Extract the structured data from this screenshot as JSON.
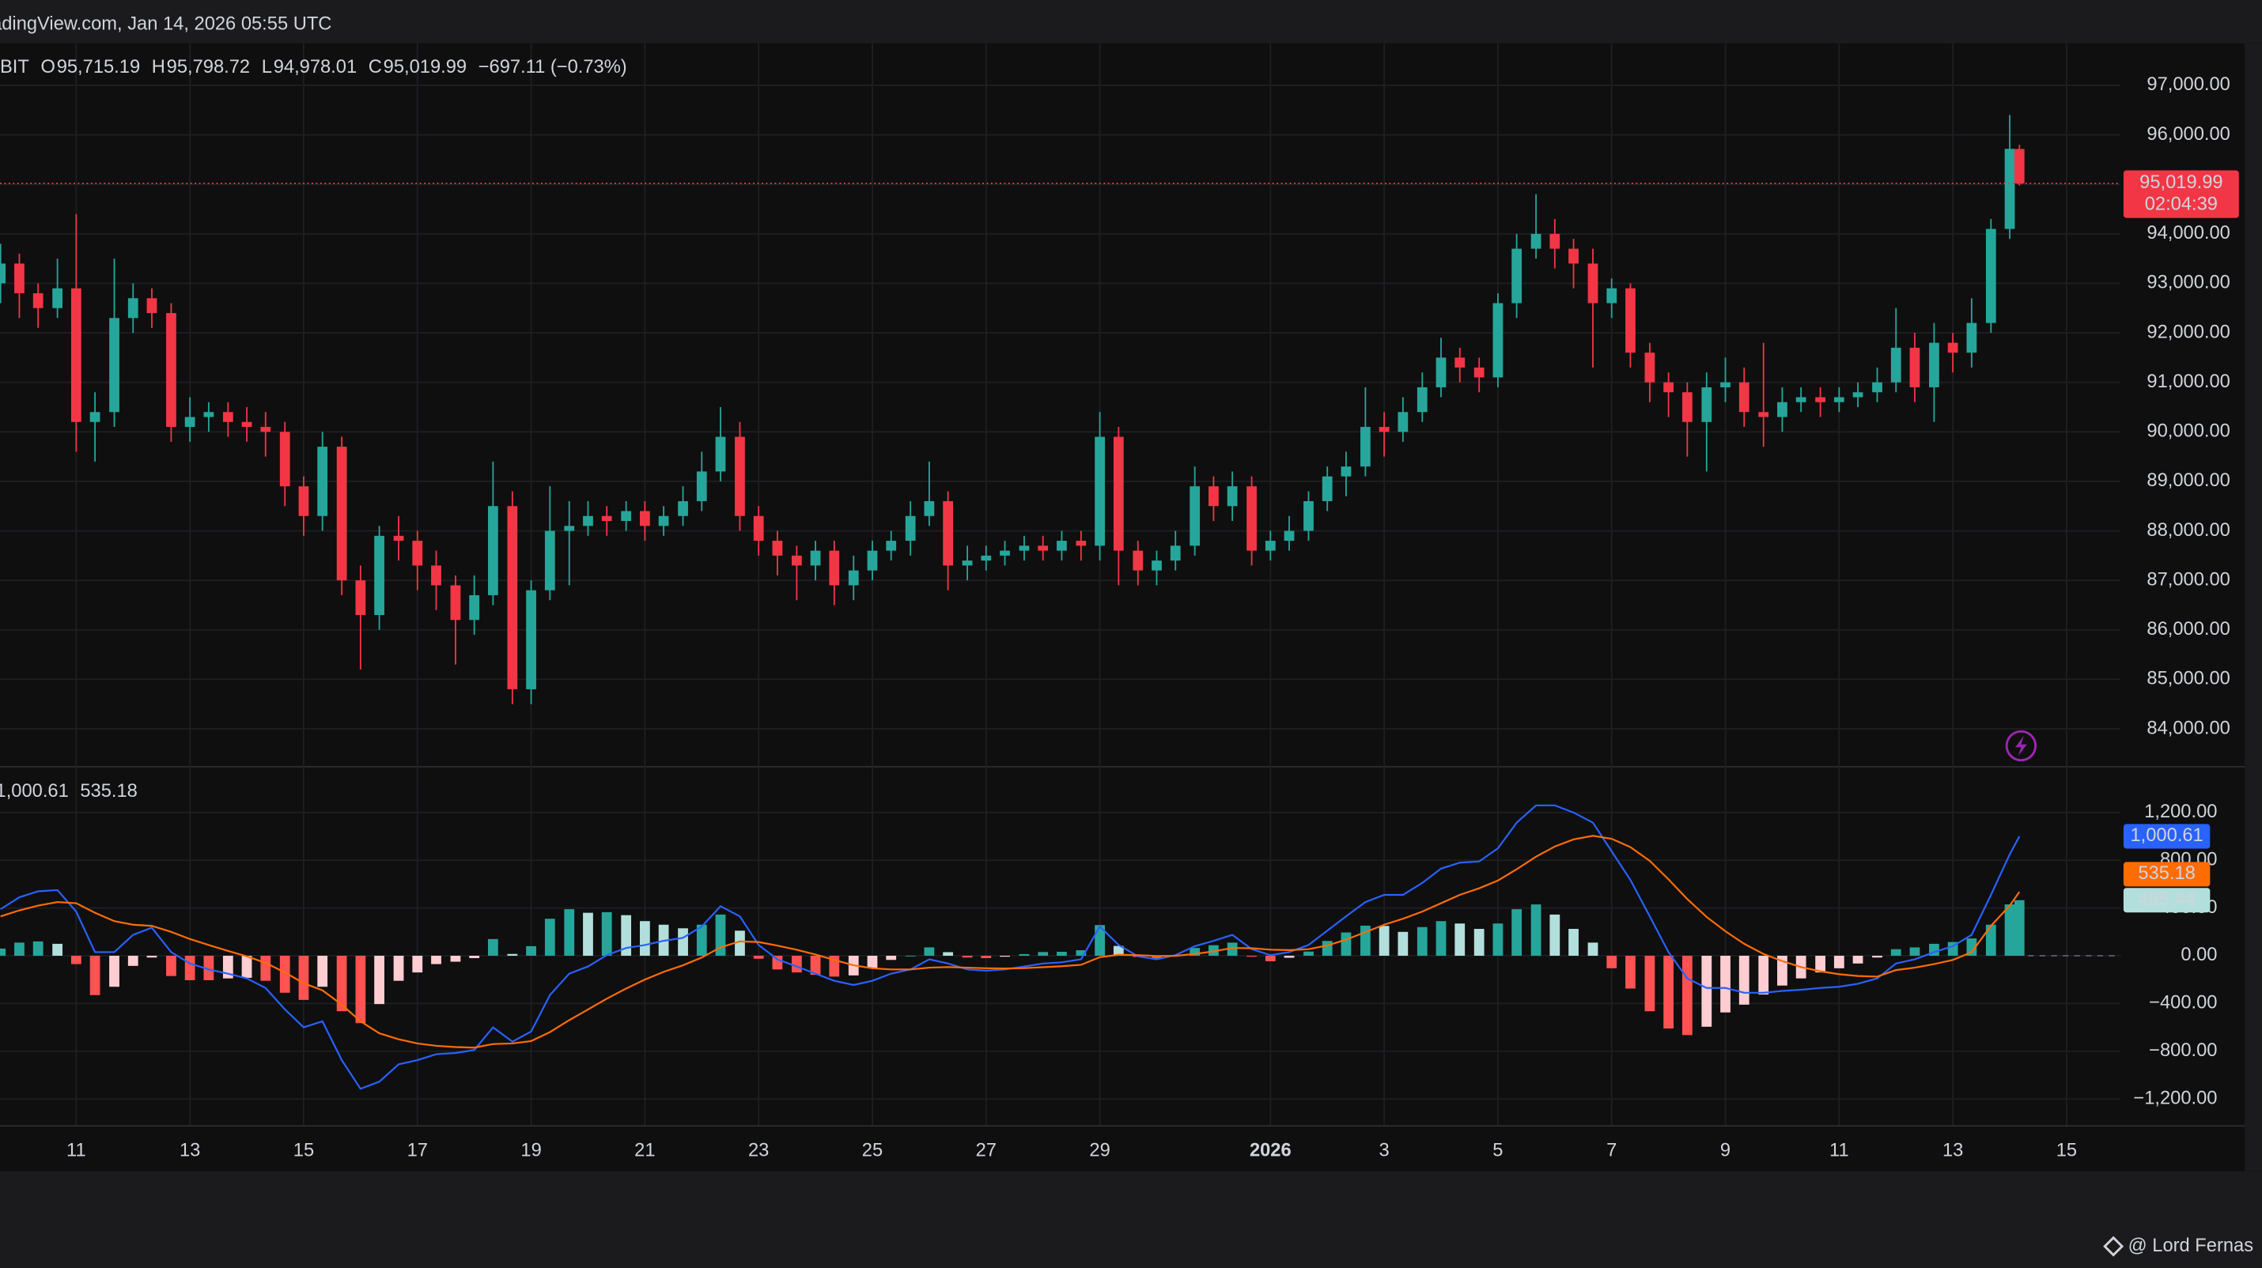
{
  "header": {
    "title": "adingView.com, Jan 14, 2026 05:55 UTC"
  },
  "watermark": "@ Lord Fernas",
  "chart_data": [
    {
      "type": "candlestick",
      "legend": [
        {
          "text": "BIT",
          "color": "#d1d4dc"
        },
        {
          "text": "O",
          "color": "#d1d4dc"
        },
        {
          "text": "95,715.19",
          "color": "#f23645"
        },
        {
          "text": "H",
          "color": "#d1d4dc"
        },
        {
          "text": "95,798.72",
          "color": "#f23645"
        },
        {
          "text": "L",
          "color": "#d1d4dc"
        },
        {
          "text": "94,978.01",
          "color": "#f23645"
        },
        {
          "text": "C",
          "color": "#d1d4dc"
        },
        {
          "text": "95,019.99",
          "color": "#f23645"
        },
        {
          "text": "−697.11 (−0.73%)",
          "color": "#f23645"
        }
      ],
      "last_label": "95,019.99",
      "countdown": "02:04:39",
      "up_color": "#26a69a",
      "down_color": "#f23645",
      "grid": true,
      "xlim": [
        9.66,
        46.95
      ],
      "ylim": [
        83250,
        97850
      ],
      "xticks": [
        11,
        13,
        15,
        17,
        19,
        21,
        23,
        25,
        27,
        29,
        {
          "value": 32,
          "label": "2026"
        },
        {
          "value": 34,
          "label": "3"
        },
        {
          "value": 36,
          "label": "5"
        },
        {
          "value": 38,
          "label": "7"
        },
        {
          "value": 40,
          "label": "9"
        },
        {
          "value": 42,
          "label": "11"
        },
        {
          "value": 44,
          "label": "13"
        },
        {
          "value": 46,
          "label": "15"
        }
      ],
      "yticks": [
        {
          "value": 84000,
          "label": "84,000.00"
        },
        {
          "value": 85000,
          "label": "85,000.00"
        },
        {
          "value": 86000,
          "label": "86,000.00"
        },
        {
          "value": 87000,
          "label": "87,000.00"
        },
        {
          "value": 88000,
          "label": "88,000.00"
        },
        {
          "value": 89000,
          "label": "89,000.00"
        },
        {
          "value": 90000,
          "label": "90,000.00"
        },
        {
          "value": 91000,
          "label": "91,000.00"
        },
        {
          "value": 92000,
          "label": "92,000.00"
        },
        {
          "value": 93000,
          "label": "93,000.00"
        },
        {
          "value": 94000,
          "label": "94,000.00"
        },
        {
          "value": 95000,
          "label": "95,000.00"
        },
        {
          "value": 96000,
          "label": "96,000.00"
        },
        {
          "value": 97000,
          "label": "97,000.00"
        }
      ],
      "x": [
        9.67,
        10,
        10.33,
        10.67,
        11,
        11.33,
        11.67,
        12,
        12.33,
        12.67,
        13,
        13.33,
        13.67,
        14,
        14.33,
        14.67,
        15,
        15.33,
        15.67,
        16,
        16.33,
        16.67,
        17,
        17.33,
        17.67,
        18,
        18.33,
        18.67,
        19,
        19.33,
        19.67,
        20,
        20.33,
        20.67,
        21,
        21.33,
        21.67,
        22,
        22.33,
        22.67,
        23,
        23.33,
        23.67,
        24,
        24.33,
        24.67,
        25,
        25.33,
        25.67,
        26,
        26.33,
        26.67,
        27,
        27.33,
        27.67,
        28,
        28.33,
        28.67,
        29,
        29.33,
        29.67,
        30,
        30.33,
        30.67,
        31,
        31.33,
        31.67,
        32,
        32.33,
        32.67,
        33,
        33.33,
        33.67,
        34,
        34.33,
        34.67,
        35,
        35.33,
        35.67,
        36,
        36.33,
        36.67,
        37,
        37.33,
        37.67,
        38,
        38.33,
        38.67,
        39,
        39.33,
        39.67,
        40,
        40.33,
        40.67,
        41,
        41.33,
        41.67,
        42,
        42.33,
        42.67,
        43,
        43.33,
        43.67,
        44,
        44.33,
        44.67,
        45,
        45.17
      ],
      "open": [
        93000,
        93400,
        92800,
        92500,
        92900,
        90200,
        90400,
        92300,
        92700,
        92400,
        90100,
        90300,
        90400,
        90200,
        90100,
        90000,
        88900,
        88300,
        89700,
        87000,
        86300,
        87900,
        87800,
        87300,
        86900,
        86200,
        86700,
        88500,
        84800,
        86800,
        88000,
        88100,
        88300,
        88200,
        88400,
        88100,
        88300,
        88600,
        89200,
        89900,
        88300,
        87800,
        87500,
        87300,
        87600,
        86900,
        87200,
        87600,
        87800,
        88300,
        88600,
        87300,
        87400,
        87500,
        87600,
        87700,
        87600,
        87800,
        87700,
        89900,
        87600,
        87200,
        87400,
        87700,
        88900,
        88500,
        88900,
        87600,
        87800,
        88000,
        88600,
        89100,
        89300,
        90100,
        90000,
        90400,
        90900,
        91500,
        91300,
        91100,
        92600,
        93700,
        94000,
        93700,
        93400,
        92600,
        92900,
        91600,
        91000,
        90800,
        90200,
        90900,
        91000,
        90400,
        90300,
        90600,
        90700,
        90600,
        90700,
        90800,
        91000,
        91700,
        90900,
        91800,
        91600,
        92200,
        94100,
        95715.19
      ],
      "high": [
        93800,
        93600,
        93000,
        93500,
        94400,
        90800,
        93500,
        93000,
        92900,
        92600,
        90700,
        90600,
        90600,
        90500,
        90400,
        90200,
        89100,
        90000,
        89900,
        87300,
        88100,
        88300,
        88000,
        87600,
        87100,
        87100,
        89400,
        88800,
        87000,
        88900,
        88600,
        88600,
        88500,
        88600,
        88600,
        88500,
        88900,
        89600,
        90500,
        90200,
        88500,
        88000,
        87700,
        87800,
        87800,
        87500,
        87800,
        88000,
        88600,
        89400,
        88800,
        87700,
        87700,
        87800,
        87900,
        87900,
        88000,
        88000,
        90400,
        90100,
        87800,
        87600,
        88000,
        89300,
        89100,
        89200,
        89100,
        88000,
        88300,
        88800,
        89300,
        89600,
        90900,
        90400,
        90700,
        91200,
        91900,
        91700,
        91500,
        92800,
        94000,
        94800,
        94300,
        93900,
        93700,
        93100,
        93000,
        91800,
        91200,
        91000,
        91200,
        91500,
        91300,
        91800,
        90900,
        90900,
        90900,
        90900,
        91000,
        91300,
        92500,
        92000,
        92200,
        92000,
        92700,
        94300,
        96400,
        95798.72
      ],
      "low": [
        92600,
        92300,
        92100,
        92300,
        89600,
        89400,
        90100,
        92000,
        92100,
        89800,
        89800,
        90000,
        89900,
        89800,
        89500,
        88500,
        87900,
        88000,
        86700,
        85200,
        86000,
        87400,
        86800,
        86400,
        85300,
        85900,
        86500,
        84500,
        84500,
        86600,
        86900,
        87900,
        87900,
        88000,
        87800,
        87900,
        88100,
        88400,
        89000,
        88000,
        87500,
        87100,
        86600,
        87000,
        86500,
        86600,
        87000,
        87400,
        87500,
        88100,
        86800,
        87000,
        87200,
        87300,
        87400,
        87400,
        87400,
        87400,
        87400,
        86900,
        86900,
        86900,
        87200,
        87500,
        88200,
        88200,
        87300,
        87400,
        87600,
        87800,
        88400,
        88700,
        89100,
        89500,
        89800,
        90200,
        90700,
        91000,
        90800,
        90900,
        92300,
        93500,
        93300,
        92900,
        91300,
        92300,
        91300,
        90600,
        90300,
        89500,
        89200,
        90600,
        90100,
        89700,
        90000,
        90400,
        90300,
        90400,
        90500,
        90600,
        90800,
        90600,
        90200,
        91200,
        91300,
        92000,
        93900,
        94978.01
      ],
      "close": [
        93400,
        92800,
        92500,
        92900,
        90200,
        90400,
        92300,
        92700,
        92400,
        90100,
        90300,
        90400,
        90200,
        90100,
        90000,
        88900,
        88300,
        89700,
        87000,
        86300,
        87900,
        87800,
        87300,
        86900,
        86200,
        86700,
        88500,
        84800,
        86800,
        88000,
        88100,
        88300,
        88200,
        88400,
        88100,
        88300,
        88600,
        89200,
        89900,
        88300,
        87800,
        87500,
        87300,
        87600,
        86900,
        87200,
        87600,
        87800,
        88300,
        88600,
        87300,
        87400,
        87500,
        87600,
        87700,
        87600,
        87800,
        87700,
        89900,
        87600,
        87200,
        87400,
        87700,
        88900,
        88500,
        88900,
        87600,
        87800,
        88000,
        88600,
        89100,
        89300,
        90100,
        90000,
        90400,
        90900,
        91500,
        91300,
        91100,
        92600,
        93700,
        94000,
        93700,
        93400,
        92600,
        92900,
        91600,
        91000,
        90800,
        90200,
        90900,
        91000,
        90400,
        90300,
        90600,
        90700,
        90600,
        90700,
        90800,
        91000,
        91700,
        90900,
        91800,
        91600,
        92200,
        94100,
        95717.1,
        95019.99
      ]
    },
    {
      "type": "macd",
      "ylim": [
        -1420,
        1590
      ],
      "yticks": [
        {
          "value": -1200,
          "label": "−1,200.00"
        },
        {
          "value": -800,
          "label": "−800.00"
        },
        {
          "value": -400,
          "label": "−400.00"
        },
        {
          "value": 0,
          "label": "0.00"
        },
        {
          "value": 400,
          "label": "400.00"
        },
        {
          "value": 800,
          "label": "800.00"
        },
        {
          "value": 1200,
          "label": "1,200.00"
        }
      ],
      "series": [
        {
          "color": "#2962ff",
          "last_label": "1,000.61",
          "values": [
            390,
            490,
            540,
            550,
            370,
            30,
            30,
            175,
            235,
            30,
            -65,
            -115,
            -150,
            -190,
            -270,
            -450,
            -600,
            -550,
            -875,
            -1115,
            -1055,
            -910,
            -875,
            -825,
            -815,
            -790,
            -600,
            -720,
            -635,
            -330,
            -150,
            -90,
            5,
            65,
            90,
            125,
            150,
            245,
            415,
            330,
            90,
            -30,
            -90,
            -150,
            -210,
            -245,
            -210,
            -150,
            -115,
            -30,
            -65,
            -115,
            -125,
            -115,
            -90,
            -65,
            -55,
            -30,
            245,
            90,
            -5,
            -30,
            5,
            80,
            125,
            175,
            55,
            5,
            30,
            90,
            210,
            330,
            450,
            510,
            510,
            610,
            730,
            780,
            790,
            900,
            1115,
            1260,
            1260,
            1200,
            1115,
            875,
            635,
            330,
            30,
            -190,
            -270,
            -270,
            -310,
            -310,
            -295,
            -285,
            -270,
            -260,
            -235,
            -190,
            -65,
            -30,
            30,
            80,
            175,
            510,
            850,
            1000.61
          ]
        },
        {
          "color": "#ff6d00",
          "last_label": "535.18",
          "values": [
            330,
            380,
            420,
            450,
            440,
            360,
            290,
            260,
            250,
            200,
            140,
            90,
            40,
            -5,
            -60,
            -140,
            -230,
            -290,
            -410,
            -550,
            -650,
            -700,
            -735,
            -755,
            -765,
            -770,
            -740,
            -735,
            -715,
            -640,
            -540,
            -450,
            -360,
            -275,
            -200,
            -135,
            -80,
            -15,
            70,
            120,
            115,
            85,
            50,
            10,
            -35,
            -80,
            -105,
            -115,
            -115,
            -100,
            -95,
            -100,
            -105,
            -107,
            -104,
            -96,
            -88,
            -76,
            -12,
            8,
            5,
            -2,
            -1,
            15,
            37,
            65,
            63,
            51,
            47,
            55,
            86,
            135,
            198,
            260,
            310,
            370,
            440,
            510,
            565,
            630,
            725,
            830,
            915,
            975,
            1005,
            980,
            910,
            795,
            640,
            475,
            325,
            205,
            100,
            15,
            -45,
            -95,
            -130,
            -155,
            -170,
            -175,
            -120,
            -100,
            -70,
            -35,
            30,
            250,
            420,
            535.18
          ]
        }
      ],
      "histogram": {
        "colors": [
          "#26a69a",
          "#b2dfdb",
          "#ff5252",
          "#ffcdd2"
        ],
        "last_label": "465.44",
        "label_color": "#b2dfdb",
        "values": [
          60,
          110,
          120,
          100,
          -70,
          -330,
          -260,
          -85,
          -15,
          -170,
          -205,
          -205,
          -190,
          -185,
          -210,
          -310,
          -370,
          -260,
          -465,
          -565,
          -405,
          -210,
          -140,
          -70,
          -50,
          -20,
          140,
          15,
          80,
          310,
          390,
          360,
          365,
          340,
          290,
          260,
          230,
          260,
          345,
          210,
          -25,
          -115,
          -140,
          -160,
          -175,
          -165,
          -105,
          -35,
          0,
          70,
          30,
          -15,
          -20,
          -8,
          14,
          31,
          33,
          46,
          257,
          82,
          -10,
          -28,
          6,
          65,
          88,
          110,
          -8,
          -46,
          -17,
          35,
          124,
          195,
          252,
          250,
          200,
          240,
          290,
          270,
          225,
          270,
          390,
          430,
          345,
          225,
          110,
          -105,
          -275,
          -465,
          -610,
          -665,
          -595,
          -475,
          -410,
          -325,
          -250,
          -190,
          -140,
          -105,
          -65,
          -15,
          55,
          70,
          100,
          115,
          145,
          260,
          430,
          465.44
        ]
      }
    }
  ]
}
